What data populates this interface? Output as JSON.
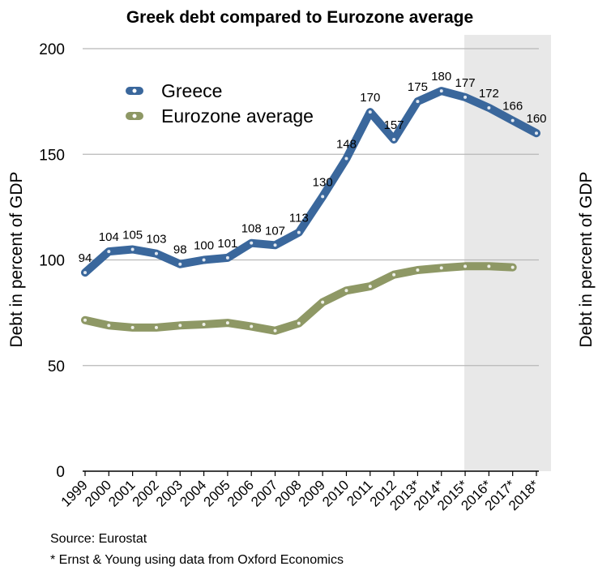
{
  "chart_data": {
    "type": "line",
    "title": "Greek debt compared to Eurozone average",
    "ylabel": "Debt in percent of GDP",
    "ylabel_right": "Debt in percent of GDP",
    "ylim": [
      0,
      200
    ],
    "yticks": [
      0,
      50,
      100,
      150,
      200
    ],
    "grid": true,
    "legend_position": "top-left",
    "categories": [
      "1999",
      "2000",
      "2001",
      "2002",
      "2003",
      "2004",
      "2005",
      "2006",
      "2007",
      "2008",
      "2009",
      "2010",
      "2011",
      "2012",
      "2013*",
      "2014*",
      "2015*",
      "2016*",
      "2017*",
      "2018*"
    ],
    "shaded_range": [
      "2015*",
      "2018*"
    ],
    "series": [
      {
        "name": "Greece",
        "color": "#3a679c",
        "values": [
          94,
          104,
          105,
          103,
          98,
          100,
          101,
          108,
          107,
          113,
          130,
          148,
          170,
          157,
          175,
          180,
          177,
          172,
          166,
          160
        ],
        "labels": [
          "94",
          "104",
          "105",
          "103",
          "98",
          "100",
          "101",
          "108",
          "107",
          "113",
          "130",
          "148",
          "170",
          "157",
          "175",
          "180",
          "177",
          "172",
          "166",
          "160"
        ]
      },
      {
        "name": "Eurozone average",
        "color": "#8e9865",
        "values": [
          71.5,
          69,
          68,
          68,
          69,
          69.5,
          70.2,
          68.5,
          66.5,
          70,
          80,
          85.5,
          87.5,
          93,
          95.2,
          96.2,
          97,
          97,
          96.5,
          null
        ]
      }
    ]
  },
  "notes": {
    "source": "Source: Eurostat",
    "footnote": "* Ernst & Young using data from Oxford Economics"
  }
}
